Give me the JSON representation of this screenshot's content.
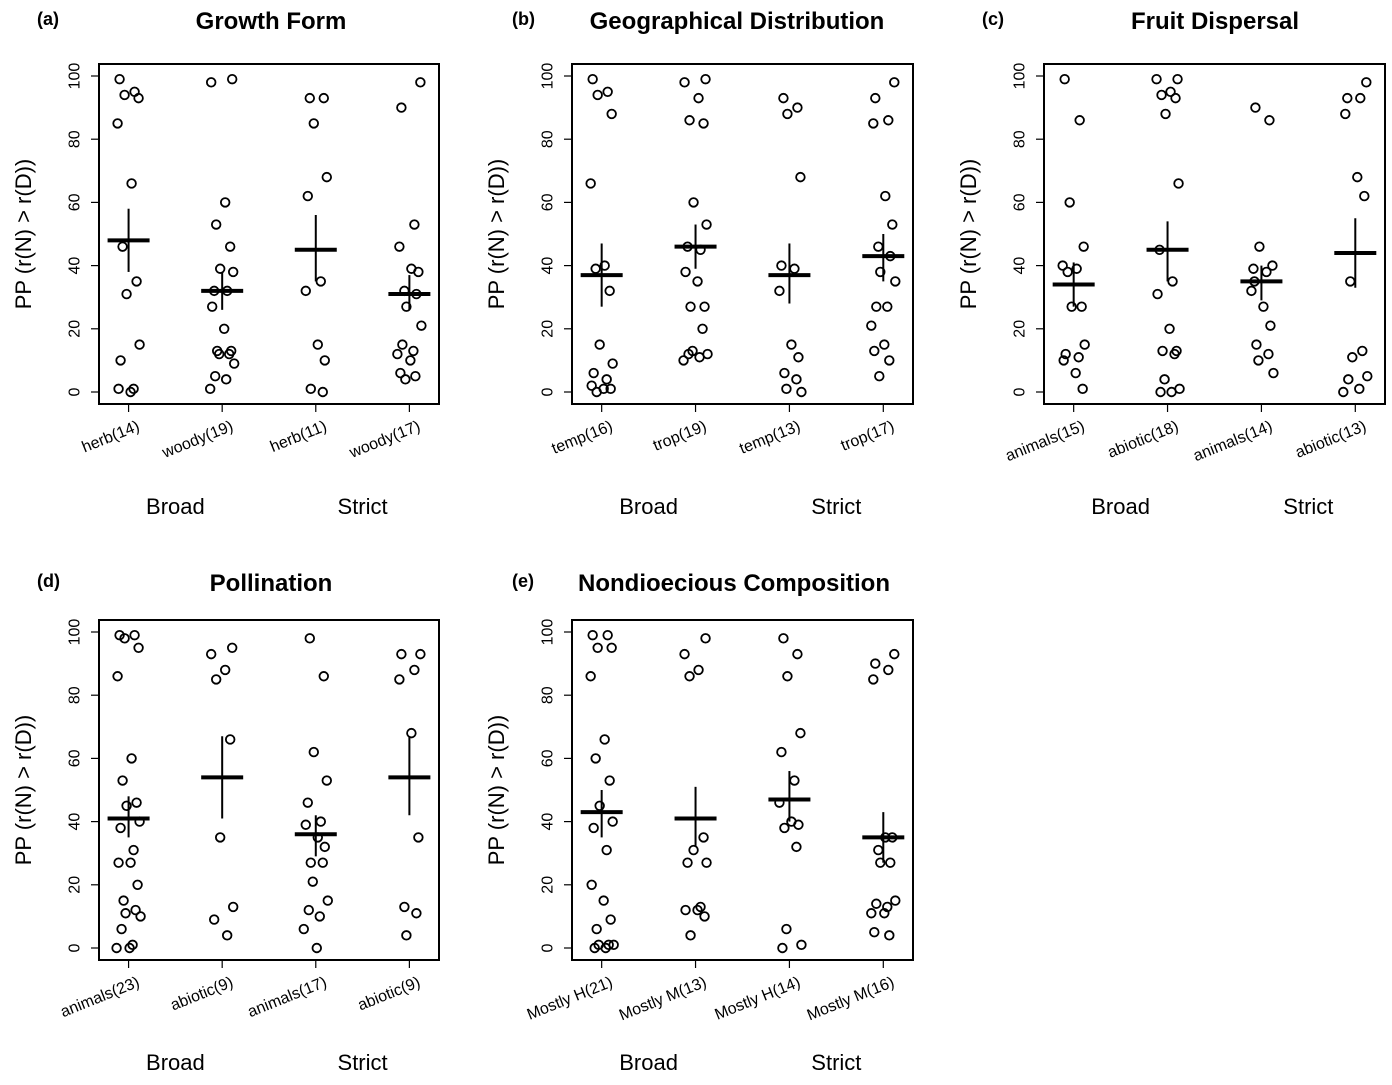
{
  "chart_data": [
    {
      "type": "scatter",
      "panel": "(a)",
      "title": "Growth Form",
      "ylabel": "PP (r(N) > r(D))",
      "ylim": [
        0,
        100
      ],
      "yticks": [
        "0",
        "20",
        "40",
        "60",
        "80",
        "100"
      ],
      "categories": [
        "herb(14)",
        "woody(19)",
        "herb(11)",
        "woody(17)"
      ],
      "groups": [
        "Broad",
        "Strict"
      ],
      "series": [
        {
          "category": "herb(14)",
          "mean": 48,
          "err_low": 38,
          "err_high": 58,
          "values": [
            99,
            95,
            94,
            93,
            85,
            66,
            46,
            35,
            31,
            15,
            10,
            1,
            1,
            0
          ]
        },
        {
          "category": "woody(19)",
          "mean": 32,
          "err_low": 26,
          "err_high": 38,
          "values": [
            99,
            98,
            60,
            53,
            46,
            39,
            38,
            32,
            32,
            27,
            20,
            13,
            13,
            12,
            12,
            9,
            5,
            4,
            1
          ]
        },
        {
          "category": "herb(11)",
          "mean": 45,
          "err_low": 35,
          "err_high": 56,
          "values": [
            93,
            93,
            85,
            68,
            62,
            35,
            32,
            15,
            10,
            1,
            0
          ]
        },
        {
          "category": "woody(17)",
          "mean": 31,
          "err_low": 26,
          "err_high": 37,
          "values": [
            98,
            90,
            53,
            46,
            39,
            38,
            32,
            31,
            27,
            21,
            15,
            13,
            12,
            10,
            6,
            5,
            4
          ]
        }
      ]
    },
    {
      "type": "scatter",
      "panel": "(b)",
      "title": "Geographical Distribution",
      "ylabel": "PP (r(N) > r(D))",
      "ylim": [
        0,
        100
      ],
      "yticks": [
        "0",
        "20",
        "40",
        "60",
        "80",
        "100"
      ],
      "categories": [
        "temp(16)",
        "trop(19)",
        "temp(13)",
        "trop(17)"
      ],
      "groups": [
        "Broad",
        "Strict"
      ],
      "series": [
        {
          "category": "temp(16)",
          "mean": 37,
          "err_low": 27,
          "err_high": 47,
          "values": [
            99,
            95,
            94,
            88,
            66,
            40,
            39,
            32,
            15,
            9,
            6,
            4,
            2,
            1,
            1,
            0
          ]
        },
        {
          "category": "trop(19)",
          "mean": 46,
          "err_low": 39,
          "err_high": 53,
          "values": [
            99,
            98,
            93,
            86,
            85,
            60,
            53,
            46,
            45,
            38,
            35,
            27,
            27,
            20,
            13,
            12,
            12,
            11,
            10
          ]
        },
        {
          "category": "temp(13)",
          "mean": 37,
          "err_low": 28,
          "err_high": 47,
          "values": [
            93,
            90,
            88,
            68,
            40,
            39,
            32,
            15,
            11,
            6,
            4,
            1,
            0
          ]
        },
        {
          "category": "trop(17)",
          "mean": 43,
          "err_low": 35,
          "err_high": 50,
          "values": [
            98,
            93,
            86,
            85,
            62,
            53,
            46,
            43,
            38,
            35,
            27,
            27,
            21,
            15,
            13,
            10,
            5
          ]
        }
      ]
    },
    {
      "type": "scatter",
      "panel": "(c)",
      "title": "Fruit Dispersal",
      "ylabel": "PP (r(N) > r(D))",
      "ylim": [
        0,
        100
      ],
      "yticks": [
        "0",
        "20",
        "40",
        "60",
        "80",
        "100"
      ],
      "categories": [
        "animals(15)",
        "abiotic(18)",
        "animals(14)",
        "abiotic(13)"
      ],
      "groups": [
        "Broad",
        "Strict"
      ],
      "series": [
        {
          "category": "animals(15)",
          "mean": 34,
          "err_low": 27,
          "err_high": 41,
          "values": [
            99,
            86,
            60,
            46,
            40,
            39,
            38,
            27,
            27,
            15,
            12,
            11,
            10,
            6,
            1
          ]
        },
        {
          "category": "abiotic(18)",
          "mean": 45,
          "err_low": 35,
          "err_high": 54,
          "values": [
            99,
            99,
            95,
            94,
            93,
            88,
            66,
            45,
            35,
            31,
            20,
            13,
            13,
            12,
            4,
            1,
            0,
            0
          ]
        },
        {
          "category": "animals(14)",
          "mean": 35,
          "err_low": 29,
          "err_high": 40,
          "values": [
            90,
            86,
            46,
            40,
            39,
            38,
            32,
            27,
            21,
            15,
            12,
            10,
            6,
            35
          ]
        },
        {
          "category": "abiotic(13)",
          "mean": 44,
          "err_low": 33,
          "err_high": 55,
          "values": [
            98,
            93,
            93,
            88,
            68,
            62,
            35,
            13,
            11,
            5,
            4,
            1,
            0
          ]
        }
      ]
    },
    {
      "type": "scatter",
      "panel": "(d)",
      "title": "Pollination",
      "ylabel": "PP (r(N) > r(D))",
      "ylim": [
        0,
        100
      ],
      "yticks": [
        "0",
        "20",
        "40",
        "60",
        "80",
        "100"
      ],
      "categories": [
        "animals(23)",
        "abiotic(9)",
        "animals(17)",
        "abiotic(9)"
      ],
      "groups": [
        "Broad",
        "Strict"
      ],
      "series": [
        {
          "category": "animals(23)",
          "mean": 41,
          "err_low": 35,
          "err_high": 48,
          "values": [
            99,
            99,
            98,
            95,
            86,
            60,
            53,
            46,
            45,
            40,
            38,
            31,
            27,
            27,
            20,
            15,
            12,
            11,
            10,
            6,
            1,
            0,
            0
          ]
        },
        {
          "category": "abiotic(9)",
          "mean": 54,
          "err_low": 41,
          "err_high": 67,
          "values": [
            95,
            93,
            88,
            85,
            66,
            35,
            13,
            9,
            4
          ]
        },
        {
          "category": "animals(17)",
          "mean": 36,
          "err_low": 29,
          "err_high": 42,
          "values": [
            98,
            86,
            62,
            53,
            46,
            40,
            39,
            35,
            32,
            27,
            27,
            21,
            15,
            12,
            10,
            6,
            0
          ]
        },
        {
          "category": "abiotic(9)",
          "mean": 54,
          "err_low": 42,
          "err_high": 67,
          "values": [
            93,
            93,
            88,
            85,
            68,
            35,
            13,
            11,
            4
          ]
        }
      ]
    },
    {
      "type": "scatter",
      "panel": "(e)",
      "title": "Nondioecious Composition",
      "ylabel": "PP (r(N) > r(D))",
      "ylim": [
        0,
        100
      ],
      "yticks": [
        "0",
        "20",
        "40",
        "60",
        "80",
        "100"
      ],
      "categories": [
        "Mostly H(21)",
        "Mostly M(13)",
        "Mostly H(14)",
        "Mostly M(16)"
      ],
      "groups": [
        "Broad",
        "Strict"
      ],
      "series": [
        {
          "category": "Mostly H(21)",
          "mean": 43,
          "err_low": 35,
          "err_high": 50,
          "values": [
            99,
            99,
            95,
            95,
            86,
            66,
            60,
            53,
            45,
            40,
            38,
            31,
            20,
            15,
            9,
            6,
            1,
            1,
            1,
            0,
            0
          ]
        },
        {
          "category": "Mostly M(13)",
          "mean": 41,
          "err_low": 32,
          "err_high": 51,
          "values": [
            98,
            93,
            88,
            86,
            35,
            31,
            27,
            27,
            13,
            12,
            12,
            10,
            4
          ]
        },
        {
          "category": "Mostly H(14)",
          "mean": 47,
          "err_low": 40,
          "err_high": 56,
          "values": [
            98,
            93,
            86,
            68,
            62,
            53,
            46,
            40,
            39,
            38,
            32,
            6,
            1,
            0
          ]
        },
        {
          "category": "Mostly M(16)",
          "mean": 35,
          "err_low": 27,
          "err_high": 43,
          "values": [
            93,
            90,
            88,
            85,
            35,
            35,
            31,
            27,
            27,
            15,
            14,
            13,
            11,
            11,
            5,
            4
          ]
        }
      ]
    }
  ]
}
